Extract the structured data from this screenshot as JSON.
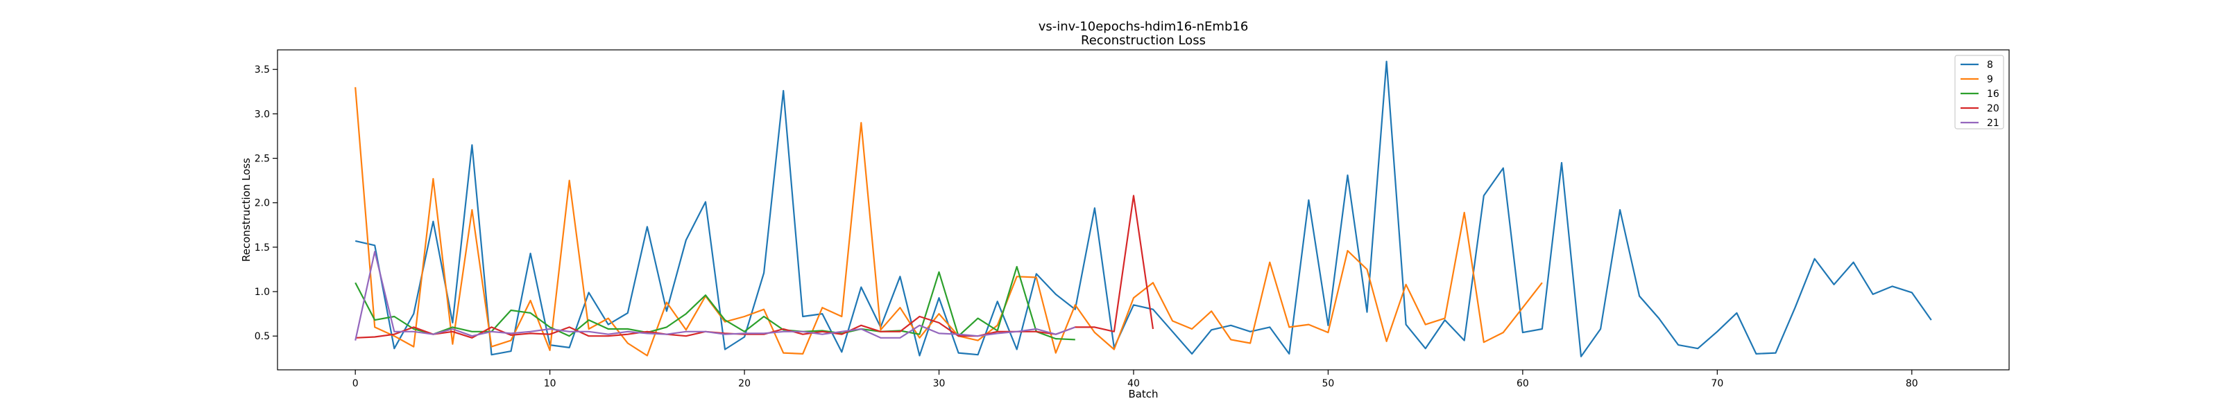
{
  "chart_data": {
    "type": "line",
    "title": "vs-inv-10epochs-hdim16-nEmb16",
    "subtitle": "Reconstruction Loss",
    "xlabel": "Batch",
    "ylabel": "Reconstruction Loss",
    "xlim": [
      -4,
      85
    ],
    "ylim": [
      0.12,
      3.72
    ],
    "xticks": [
      0,
      10,
      20,
      30,
      40,
      50,
      60,
      70,
      80
    ],
    "yticks": [
      0.5,
      1.0,
      1.5,
      2.0,
      2.5,
      3.0,
      3.5
    ],
    "ytick_labels": [
      "0.5",
      "1.0",
      "1.5",
      "2.0",
      "2.5",
      "3.0",
      "3.5"
    ],
    "grid": false,
    "legend_position": "top-right",
    "series": [
      {
        "name": "8",
        "color": "#1f77b4",
        "values": [
          1.57,
          1.52,
          0.36,
          0.75,
          1.79,
          0.65,
          2.65,
          0.29,
          0.33,
          1.43,
          0.4,
          0.37,
          0.99,
          0.63,
          0.76,
          1.73,
          0.78,
          1.58,
          2.01,
          0.35,
          0.49,
          1.21,
          3.26,
          0.72,
          0.75,
          0.32,
          1.05,
          0.6,
          1.17,
          0.28,
          0.93,
          0.31,
          0.29,
          0.89,
          0.35,
          1.2,
          0.97,
          0.8,
          1.94,
          0.37,
          0.85,
          0.8,
          0.55,
          0.3,
          0.57,
          0.62,
          0.55,
          0.6,
          0.3,
          2.03,
          0.62,
          2.31,
          0.77,
          3.59,
          0.63,
          0.36,
          0.68,
          0.45,
          2.08,
          2.39,
          0.54,
          0.58,
          2.45,
          0.27,
          0.58,
          1.92,
          0.95,
          0.7,
          0.4,
          0.36,
          0.55,
          0.76,
          0.3,
          0.31,
          0.82,
          1.37,
          1.08,
          1.33,
          0.97,
          1.06,
          0.99,
          0.68
        ]
      },
      {
        "name": "9",
        "color": "#ff7f0e",
        "values": [
          3.3,
          0.6,
          0.5,
          0.38,
          2.27,
          0.41,
          1.92,
          0.38,
          0.45,
          0.9,
          0.34,
          2.25,
          0.58,
          0.7,
          0.42,
          0.28,
          0.88,
          0.57,
          0.95,
          0.66,
          0.72,
          0.8,
          0.31,
          0.3,
          0.82,
          0.72,
          2.9,
          0.57,
          0.82,
          0.48,
          0.75,
          0.5,
          0.45,
          0.62,
          1.17,
          1.16,
          0.31,
          0.85,
          0.54,
          0.35,
          0.93,
          1.1,
          0.67,
          0.58,
          0.78,
          0.46,
          0.42,
          1.33,
          0.6,
          0.63,
          0.54,
          1.46,
          1.25,
          0.44,
          1.08,
          0.63,
          0.7,
          1.89,
          0.43,
          0.54,
          0.82,
          1.1
        ]
      },
      {
        "name": "16",
        "color": "#2ca02c",
        "values": [
          1.1,
          0.68,
          0.72,
          0.58,
          0.52,
          0.6,
          0.55,
          0.55,
          0.79,
          0.76,
          0.6,
          0.5,
          0.68,
          0.58,
          0.58,
          0.54,
          0.6,
          0.75,
          0.96,
          0.68,
          0.55,
          0.72,
          0.57,
          0.55,
          0.56,
          0.53,
          0.58,
          0.55,
          0.56,
          0.52,
          1.22,
          0.5,
          0.7,
          0.56,
          1.28,
          0.55,
          0.47,
          0.46
        ]
      },
      {
        "name": "20",
        "color": "#d62728",
        "values": [
          0.48,
          0.49,
          0.52,
          0.6,
          0.52,
          0.55,
          0.48,
          0.6,
          0.51,
          0.53,
          0.52,
          0.6,
          0.5,
          0.5,
          0.52,
          0.55,
          0.52,
          0.5,
          0.55,
          0.53,
          0.52,
          0.52,
          0.58,
          0.52,
          0.55,
          0.52,
          0.62,
          0.55,
          0.55,
          0.72,
          0.65,
          0.5,
          0.5,
          0.55,
          0.55,
          0.55,
          0.52,
          0.6,
          0.6,
          0.55,
          2.08,
          0.58
        ]
      },
      {
        "name": "21",
        "color": "#9467bd",
        "values": [
          0.45,
          1.45,
          0.55,
          0.55,
          0.52,
          0.58,
          0.5,
          0.55,
          0.53,
          0.55,
          0.58,
          0.55,
          0.55,
          0.52,
          0.55,
          0.53,
          0.52,
          0.55,
          0.55,
          0.52,
          0.53,
          0.53,
          0.55,
          0.55,
          0.52,
          0.55,
          0.58,
          0.48,
          0.48,
          0.62,
          0.53,
          0.52,
          0.5,
          0.53,
          0.55,
          0.58,
          0.52,
          0.6
        ]
      }
    ]
  }
}
